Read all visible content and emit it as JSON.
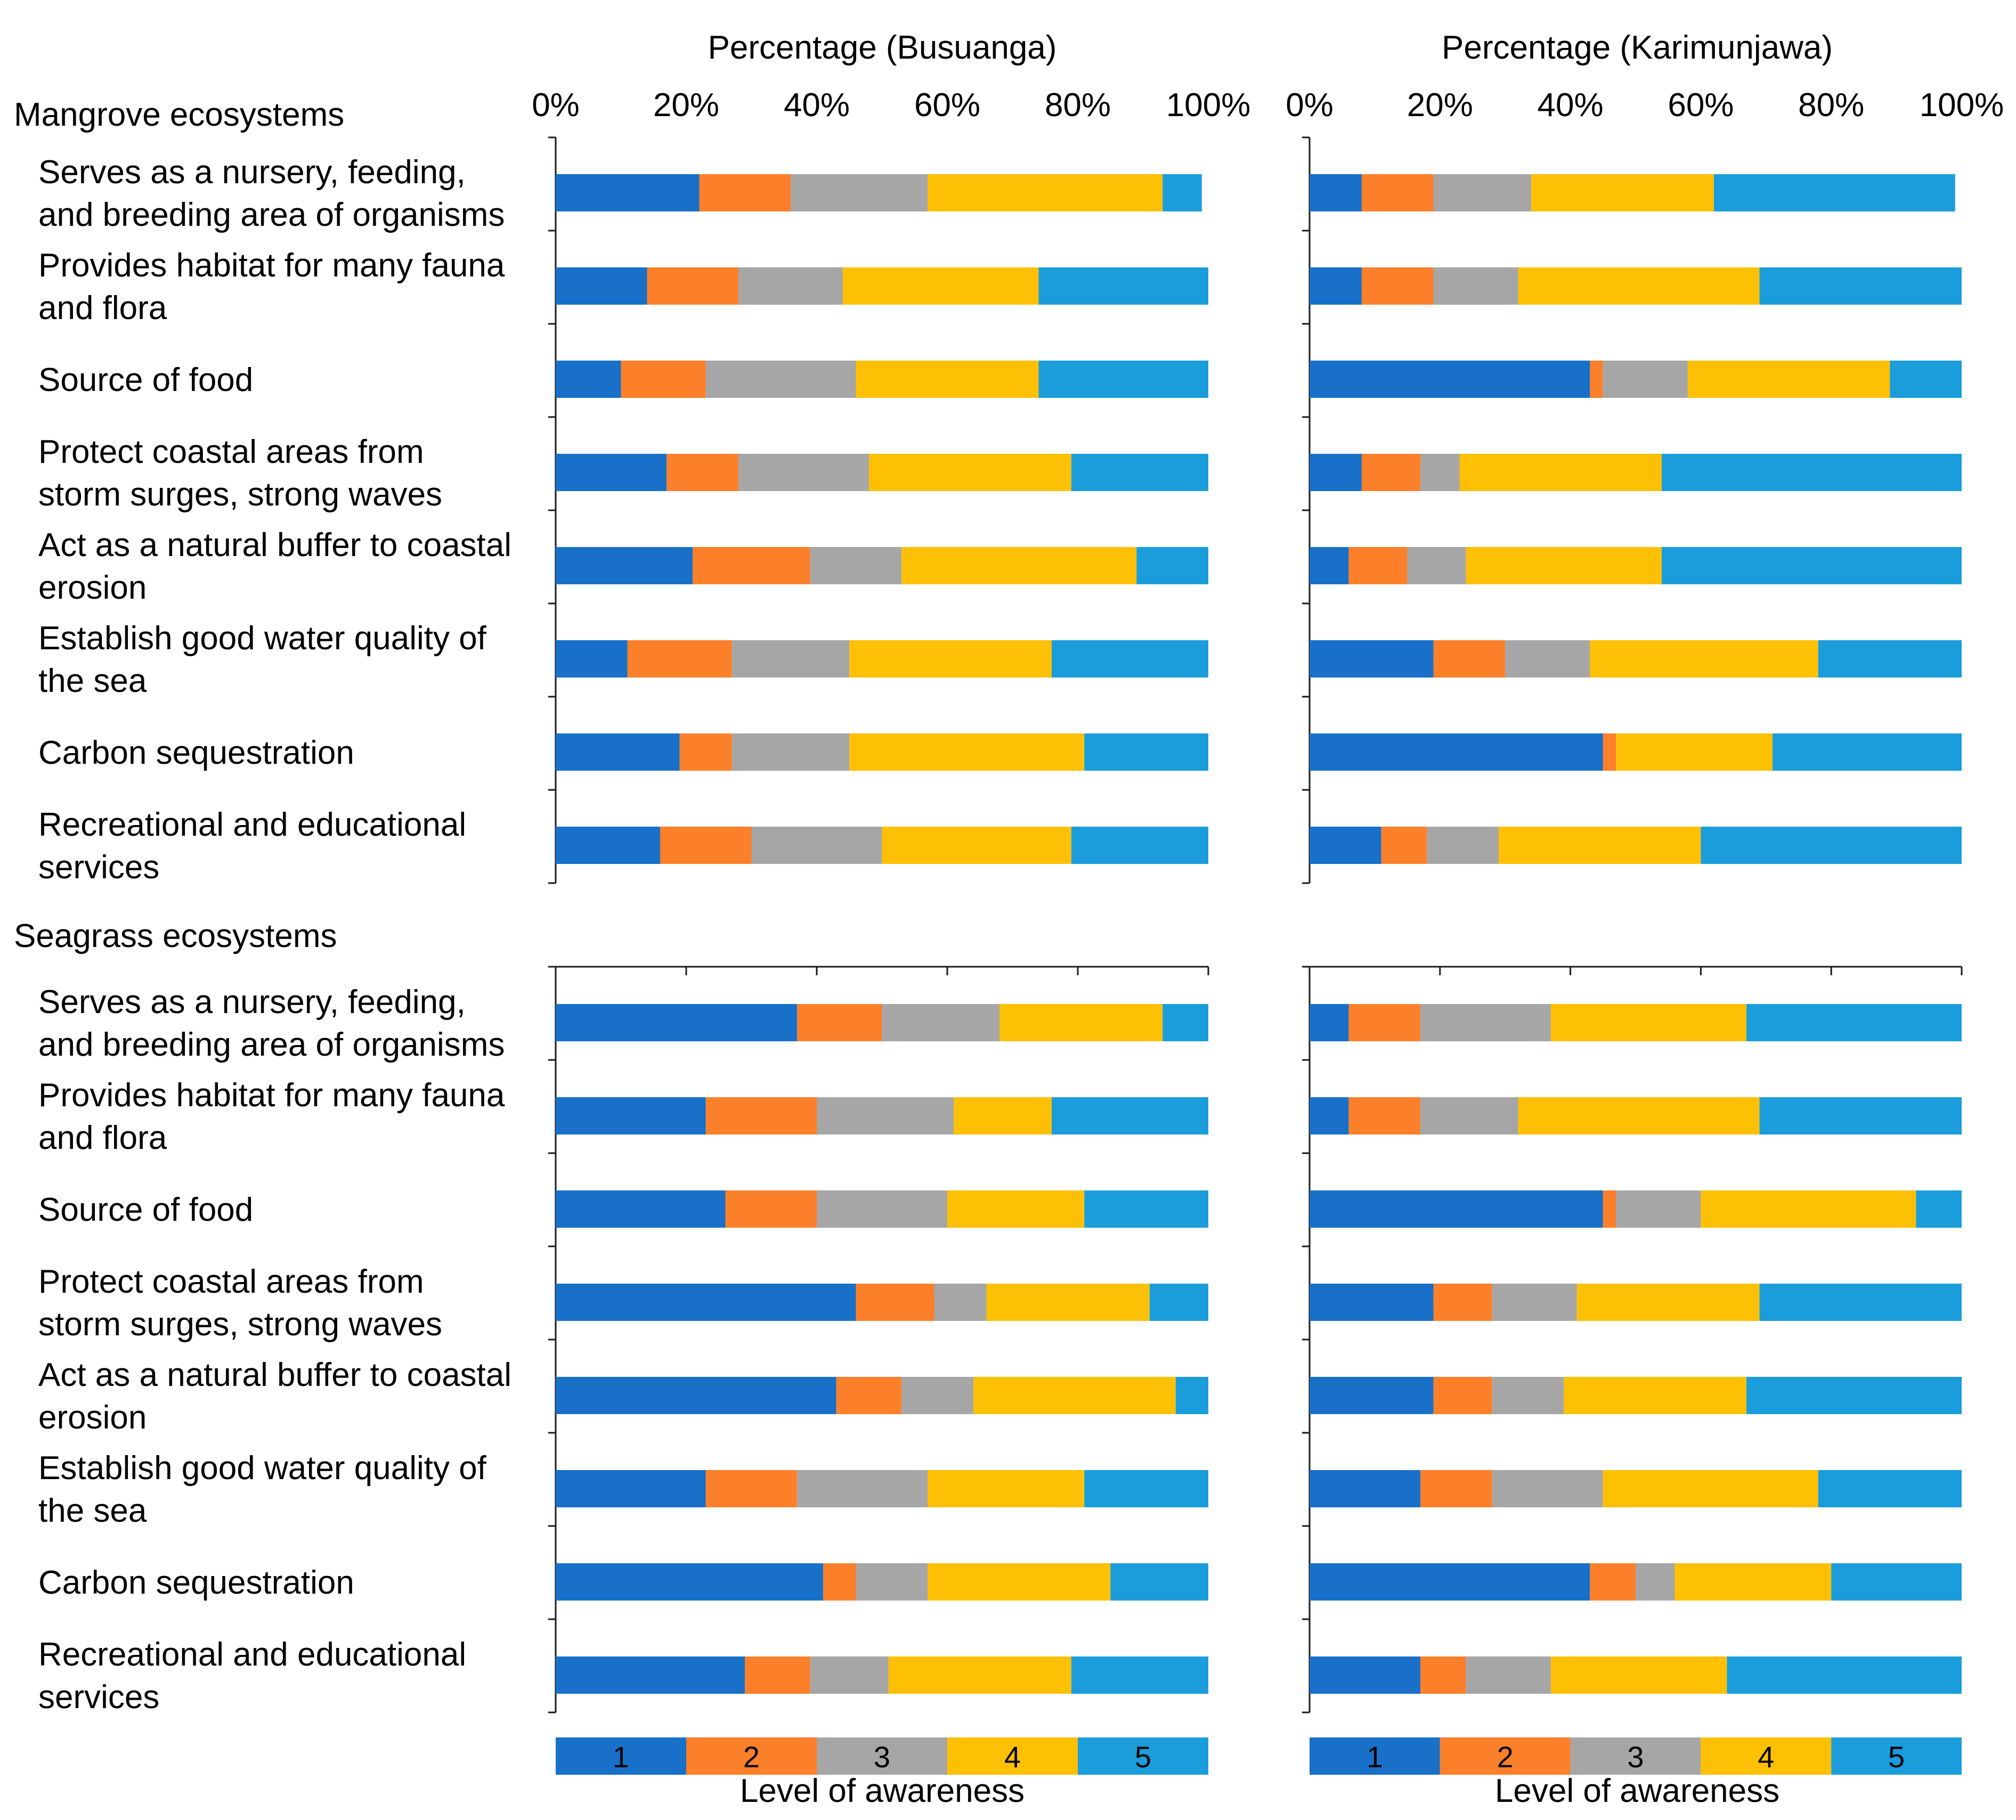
{
  "colors": {
    "1": "#1870C8",
    "2": "#FC7F2A",
    "3": "#A6A6A6",
    "4": "#FEC004",
    "5": "#1B9DDB"
  },
  "legend": {
    "levels": [
      "1",
      "2",
      "3",
      "4",
      "5"
    ],
    "title": "Level of awareness"
  },
  "axis": {
    "ticks": [
      "0%",
      "20%",
      "40%",
      "60%",
      "80%",
      "100%"
    ]
  },
  "chart_data": {
    "type": "bar",
    "stacked": true,
    "orientation": "horizontal",
    "xlim": [
      0,
      100
    ],
    "series_names": [
      "1",
      "2",
      "3",
      "4",
      "5"
    ],
    "panels": [
      {
        "id": "busuanga",
        "title": "Percentage (Busuanga)"
      },
      {
        "id": "karimunjawa",
        "title": "Percentage (Karimunjawa)"
      }
    ],
    "sections": [
      {
        "title": "Mangrove ecosystems",
        "categories": [
          {
            "lines": [
              "Serves as a nursery, feeding,",
              "and breeding area of organisms"
            ],
            "busuanga": [
              22,
              14,
              21,
              36,
              6
            ],
            "karimunjawa": [
              8,
              11,
              15,
              28,
              37
            ]
          },
          {
            "lines": [
              "Provides habitat for many fauna",
              "and flora"
            ],
            "busuanga": [
              14,
              14,
              16,
              30,
              26
            ],
            "karimunjawa": [
              8,
              11,
              13,
              37,
              31
            ]
          },
          {
            "lines": [
              "Source of food"
            ],
            "busuanga": [
              10,
              13,
              23,
              28,
              26
            ],
            "karimunjawa": [
              43,
              2,
              13,
              31,
              11
            ]
          },
          {
            "lines": [
              "Protect coastal areas from",
              "storm surges, strong waves"
            ],
            "busuanga": [
              17,
              11,
              20,
              31,
              21
            ],
            "karimunjawa": [
              8,
              9,
              6,
              31,
              46
            ]
          },
          {
            "lines": [
              "Act as a natural buffer to coastal",
              "erosion"
            ],
            "busuanga": [
              21,
              18,
              14,
              36,
              11
            ],
            "karimunjawa": [
              6,
              9,
              9,
              30,
              46
            ]
          },
          {
            "lines": [
              "Establish good water quality of",
              "the sea"
            ],
            "busuanga": [
              11,
              16,
              18,
              31,
              24
            ],
            "karimunjawa": [
              19,
              11,
              13,
              35,
              22
            ]
          },
          {
            "lines": [
              "Carbon sequestration"
            ],
            "busuanga": [
              19,
              8,
              18,
              36,
              19
            ],
            "karimunjawa": [
              45,
              2,
              0,
              24,
              29
            ]
          },
          {
            "lines": [
              "Recreational and educational",
              "services"
            ],
            "busuanga": [
              16,
              14,
              20,
              29,
              21
            ],
            "karimunjawa": [
              11,
              7,
              11,
              31,
              40
            ]
          }
        ]
      },
      {
        "title": "Seagrass ecosystems",
        "categories": [
          {
            "lines": [
              "Serves as a nursery, feeding,",
              "and breeding area of organisms"
            ],
            "busuanga": [
              37,
              13,
              18,
              25,
              7
            ],
            "karimunjawa": [
              6,
              11,
              20,
              30,
              33
            ]
          },
          {
            "lines": [
              "Provides habitat for many fauna",
              "and flora"
            ],
            "busuanga": [
              23,
              17,
              21,
              15,
              24
            ],
            "karimunjawa": [
              6,
              11,
              15,
              37,
              31
            ]
          },
          {
            "lines": [
              "Source of food"
            ],
            "busuanga": [
              26,
              14,
              20,
              21,
              19
            ],
            "karimunjawa": [
              45,
              2,
              13,
              33,
              7
            ]
          },
          {
            "lines": [
              "Protect coastal areas from",
              "storm surges, strong waves"
            ],
            "busuanga": [
              46,
              12,
              8,
              25,
              9
            ],
            "karimunjawa": [
              19,
              9,
              13,
              28,
              31
            ]
          },
          {
            "lines": [
              "Act as a natural buffer to coastal",
              "erosion"
            ],
            "busuanga": [
              43,
              10,
              11,
              31,
              5
            ],
            "karimunjawa": [
              19,
              9,
              11,
              28,
              33
            ]
          },
          {
            "lines": [
              "Establish good water quality of",
              "the sea"
            ],
            "busuanga": [
              23,
              14,
              20,
              24,
              19
            ],
            "karimunjawa": [
              17,
              11,
              17,
              33,
              22
            ]
          },
          {
            "lines": [
              "Carbon sequestration"
            ],
            "busuanga": [
              41,
              5,
              11,
              28,
              15
            ],
            "karimunjawa": [
              43,
              7,
              6,
              24,
              20
            ]
          },
          {
            "lines": [
              "Recreational and educational",
              "services"
            ],
            "busuanga": [
              29,
              10,
              12,
              28,
              21
            ],
            "karimunjawa": [
              17,
              7,
              13,
              27,
              36
            ]
          }
        ]
      }
    ]
  }
}
